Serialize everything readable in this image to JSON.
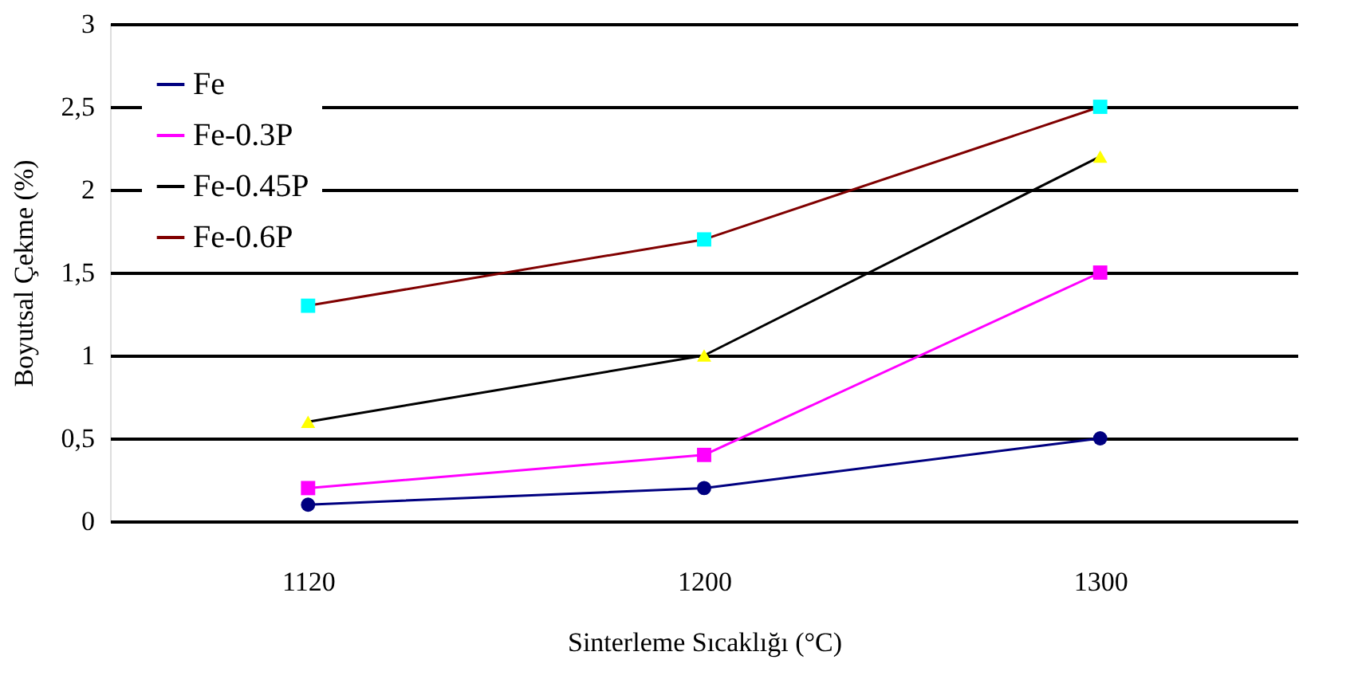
{
  "chart_data": {
    "type": "line",
    "xlabel": "Sinterleme Sıcaklığı (°C)",
    "ylabel": "Boyutsal Çekme (%)",
    "categories": [
      "1120",
      "1200",
      "1300"
    ],
    "series": [
      {
        "name": "Fe",
        "color": "#000080",
        "colors": [
          "#000080",
          "#000080",
          "#000080"
        ],
        "marker": "circle",
        "values": [
          0.1,
          0.2,
          0.5
        ]
      },
      {
        "name": "Fe-0.3P",
        "color": "#ff00ff",
        "colors": [
          "#ff00ff",
          "#ff00ff",
          "#ff00ff"
        ],
        "marker": "square",
        "values": [
          0.2,
          0.4,
          1.5
        ]
      },
      {
        "name": "Fe-0.45P",
        "color": "#000000",
        "colors": [
          "#ffff00",
          "#ffff00",
          "#ffff00"
        ],
        "marker": "triangle",
        "values": [
          0.6,
          1.0,
          2.2
        ]
      },
      {
        "name": "Fe-0.6P",
        "color": "#800000",
        "colors": [
          "#00ffff",
          "#00ffff",
          "#00ffff"
        ],
        "marker": "square",
        "values": [
          1.3,
          1.7,
          2.5
        ]
      }
    ],
    "ylim": [
      0,
      3
    ],
    "yticks": [
      0,
      {
        "value": 0.5,
        "label": "0,5"
      },
      1,
      {
        "value": 1.5,
        "label": "1,5"
      },
      2,
      {
        "value": 2.5,
        "label": "2,5"
      },
      3
    ],
    "grid": "y",
    "legend": "top left",
    "line_style": "solid"
  }
}
